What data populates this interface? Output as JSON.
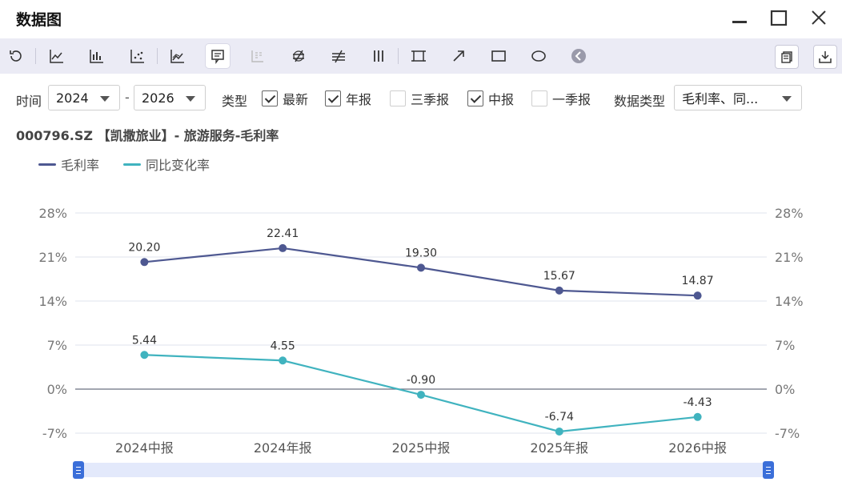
{
  "window": {
    "title": "数据图"
  },
  "filters": {
    "time_label": "时间",
    "start_year": "2024",
    "end_year": "2026",
    "range_separator": "-",
    "type_label": "类型",
    "types": [
      {
        "label": "最新",
        "checked": true
      },
      {
        "label": "年报",
        "checked": true
      },
      {
        "label": "三季报",
        "checked": false
      },
      {
        "label": "中报",
        "checked": true
      },
      {
        "label": "一季报",
        "checked": false
      }
    ],
    "data_type_label": "数据类型",
    "data_type_value": "毛利率、同..."
  },
  "chart_header": {
    "title": "000796.SZ 【凯撒旅业】- 旅游服务-毛利率"
  },
  "colors": {
    "series1": "#4e5891",
    "series2": "#40b3bf",
    "grid": "#dfe3ec",
    "zero_line": "#6a7280",
    "toolbar_bg": "#ebebf5",
    "zoom_track": "#e3e9fb",
    "zoom_handle": "#3b6fd9"
  },
  "icons": {
    "window": [
      "minimize-icon",
      "maximize-icon",
      "close-icon"
    ],
    "toolbar": [
      "refresh-icon",
      "line-chart-icon",
      "bar-chart-icon",
      "scatter-chart-icon",
      "area-line-icon",
      "comment-icon",
      "table-icon",
      "not-equal-slash-icon",
      "not-equal-icon",
      "vertical-bars-icon",
      "crop-icon",
      "arrow-icon",
      "rectangle-icon",
      "ellipse-icon",
      "back-circle-icon"
    ],
    "toolbar_right": [
      "copy-icon",
      "download-icon"
    ]
  },
  "chart_data": {
    "type": "line",
    "title": "000796.SZ 【凯撒旅业】- 旅游服务-毛利率",
    "categories": [
      "2024中报",
      "2024年报",
      "2025中报",
      "2025年报",
      "2026中报"
    ],
    "series": [
      {
        "name": "毛利率",
        "values": [
          20.2,
          22.41,
          19.3,
          15.67,
          14.87
        ],
        "labels": [
          "20.20",
          "22.41",
          "19.30",
          "15.67",
          "14.87"
        ]
      },
      {
        "name": "同比变化率",
        "values": [
          5.44,
          4.55,
          -0.9,
          -6.74,
          -4.43
        ],
        "labels": [
          "5.44",
          "4.55",
          "-0.90",
          "-6.74",
          "-4.43"
        ]
      }
    ],
    "ylim": [
      -7,
      28
    ],
    "y_ticks": [
      "28%",
      "21%",
      "14%",
      "7%",
      "0%",
      "-7%"
    ],
    "y_tick_values": [
      28,
      21,
      14,
      7,
      0,
      -7
    ],
    "grid": true,
    "legend_position": "top-left",
    "dual_axis": true
  }
}
